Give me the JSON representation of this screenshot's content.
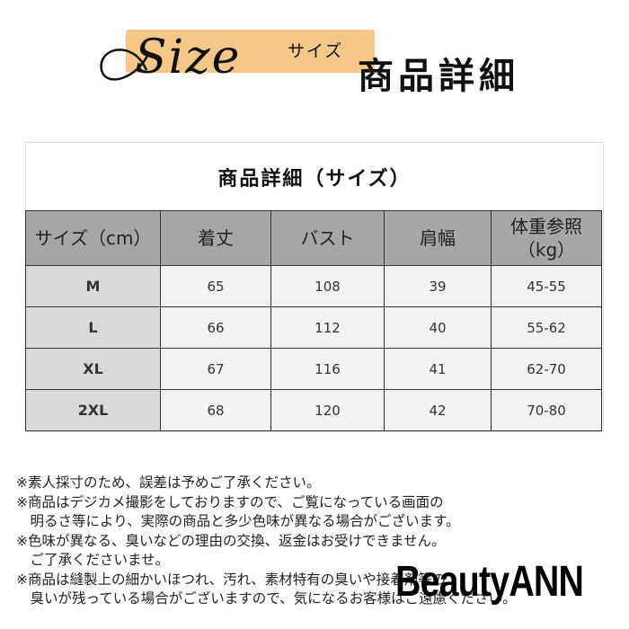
{
  "header": {
    "script_word": "Size",
    "kana": "サイズ",
    "title": "商品詳細",
    "highlight_color": "#f5c887"
  },
  "table": {
    "title": "商品詳細（サイズ）",
    "columns": [
      "サイズ（cm）",
      "着丈",
      "バスト",
      "肩幅",
      "体重参照\n（kg）"
    ],
    "rows": [
      [
        "M",
        "65",
        "108",
        "39",
        "45-55"
      ],
      [
        "L",
        "66",
        "112",
        "40",
        "55-62"
      ],
      [
        "XL",
        "67",
        "116",
        "41",
        "62-70"
      ],
      [
        "2XL",
        "68",
        "120",
        "42",
        "70-80"
      ]
    ],
    "colors": {
      "header": "#a6a6a6",
      "size_column": "#d9d9d9",
      "cells": "#f2f2f2"
    }
  },
  "notes": [
    "※素人採寸のため、誤差は予めご了承ください。",
    "※商品はデジカメ撮影をしておりますので、ご覧になっている画面の",
    "　明るさ等により、実際の商品と多少色味が異なる場合がございます。",
    "※色味が異なる、臭いなどの理由の交換、返金はお受けできません。",
    "　ご了承くださいませ。",
    "※商品は縫製上の細かいほつれ、汚れ、素材特有の臭いや接着剤等の",
    "　臭いが残っている場合がございますので、気になるお客様はご遠慮ください。"
  ],
  "watermark": "BeautyANN"
}
